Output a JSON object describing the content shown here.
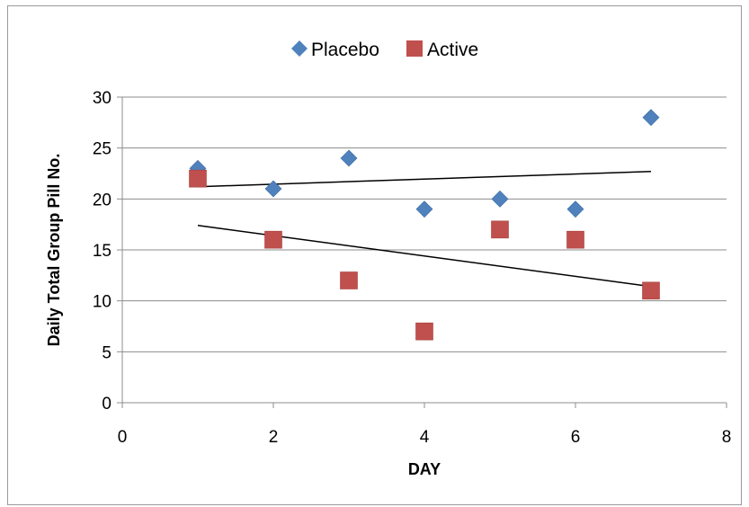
{
  "chart_data": {
    "type": "scatter",
    "title": "",
    "xlabel": "DAY",
    "ylabel": "Daily Total Group Pill No.",
    "xlim": [
      0,
      8
    ],
    "ylim": [
      0,
      30
    ],
    "xticks": [
      0,
      2,
      4,
      6,
      8
    ],
    "yticks": [
      0,
      5,
      10,
      15,
      20,
      25,
      30
    ],
    "grid": "horizontal major gridlines",
    "legend_position": "top",
    "series": [
      {
        "name": "Placebo",
        "marker": "diamond",
        "color": "#4f81bd",
        "x": [
          1,
          2,
          3,
          4,
          5,
          6,
          7
        ],
        "y": [
          23,
          21,
          24,
          19,
          20,
          19,
          28
        ],
        "trendline": {
          "type": "linear",
          "x": [
            1,
            7
          ],
          "y": [
            21.2,
            22.7
          ]
        }
      },
      {
        "name": "Active",
        "marker": "square",
        "color": "#c0504d",
        "x": [
          1,
          2,
          3,
          4,
          5,
          6,
          7
        ],
        "y": [
          22,
          16,
          12,
          7,
          17,
          16,
          11
        ],
        "trendline": {
          "type": "linear",
          "x": [
            1,
            7
          ],
          "y": [
            17.4,
            11.4
          ]
        }
      }
    ]
  }
}
